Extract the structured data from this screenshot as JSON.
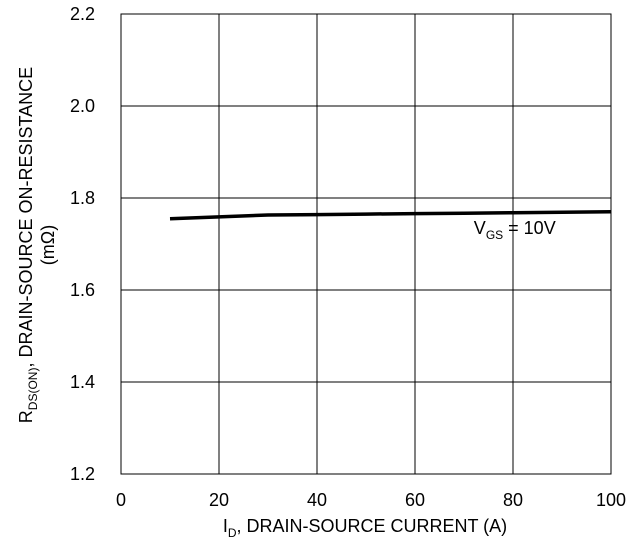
{
  "chart_data": {
    "type": "line",
    "title": "",
    "xlabel": {
      "main": "I",
      "sub": "D",
      "rest": ", DRAIN-SOURCE CURRENT (A)"
    },
    "ylabel": {
      "main": "R",
      "sub": "DS(ON)",
      "rest": ", DRAIN-SOURCE ON-RESISTANCE",
      "line2": "(mΩ)"
    },
    "xlim": [
      0,
      100
    ],
    "ylim": [
      1.2,
      2.2
    ],
    "xticks": [
      0,
      20,
      40,
      60,
      80,
      100
    ],
    "yticks": [
      1.2,
      1.4,
      1.6,
      1.8,
      2.0,
      2.2
    ],
    "xtick_labels": [
      "0",
      "20",
      "40",
      "60",
      "80",
      "100"
    ],
    "ytick_labels": [
      "1.2",
      "1.4",
      "1.6",
      "1.8",
      "2.0",
      "2.2"
    ],
    "grid": true,
    "series": [
      {
        "name": "",
        "color": "#000000",
        "x": [
          10,
          20,
          30,
          40,
          50,
          60,
          70,
          80,
          90,
          100
        ],
        "y": [
          1.755,
          1.759,
          1.763,
          1.764,
          1.765,
          1.766,
          1.767,
          1.768,
          1.769,
          1.77
        ]
      }
    ],
    "annotations": [
      {
        "main": "V",
        "sub": "GS",
        "rest": " = 10V",
        "x": 72,
        "y": 1.722
      }
    ]
  }
}
